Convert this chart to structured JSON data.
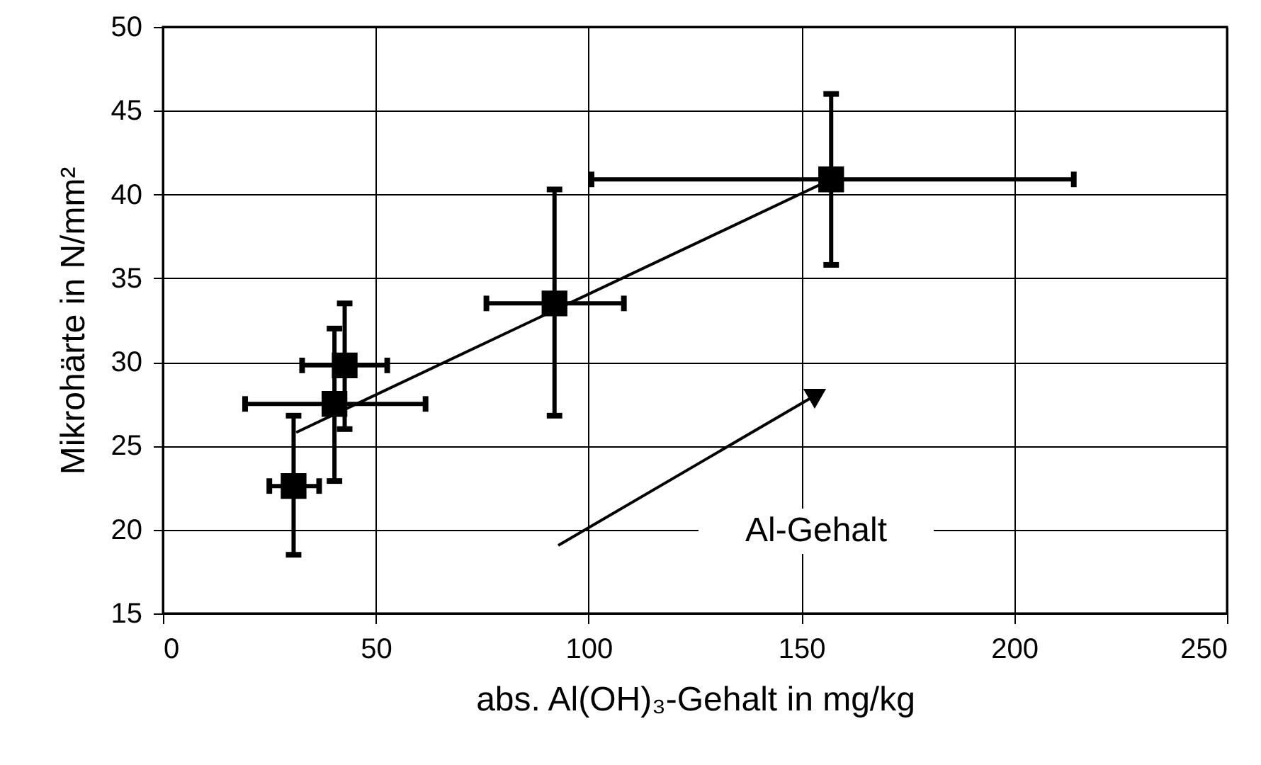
{
  "chart_data": {
    "type": "scatter",
    "xlabel": "abs. Al(OH)₃-Gehalt in mg/kg",
    "ylabel": "Mikrohärte in N/mm²",
    "xlim": [
      0,
      250
    ],
    "ylim": [
      15,
      50
    ],
    "xticks": [
      0,
      50,
      100,
      150,
      200,
      250
    ],
    "yticks": [
      15,
      20,
      25,
      30,
      35,
      40,
      45,
      50
    ],
    "grid": true,
    "marker": "square",
    "annotations": [
      "Al-Gehalt"
    ],
    "series": [
      {
        "color": "#000000",
        "x": [
          30.7,
          40.3,
          42.7,
          92,
          157
        ],
        "values": [
          22.6,
          27.5,
          29.8,
          33.5,
          40.9
        ],
        "errors": [
          [
            18.5,
            26.8
          ],
          [
            22.9,
            32.0
          ],
          [
            26.0,
            33.5
          ],
          [
            26.8,
            40.3
          ],
          [
            35.8,
            46.0
          ]
        ],
        "xerrors": [
          [
            25,
            36.7
          ],
          [
            19.3,
            61.7
          ],
          [
            32.7,
            52.7
          ],
          [
            76,
            108.3
          ],
          [
            100.7,
            214
          ]
        ]
      },
      {
        "type": "line",
        "color": "#000000",
        "line_style": "solid",
        "marker": "none",
        "x": [
          31.3,
          157
        ],
        "values": [
          25.8,
          40.9
        ]
      }
    ]
  }
}
